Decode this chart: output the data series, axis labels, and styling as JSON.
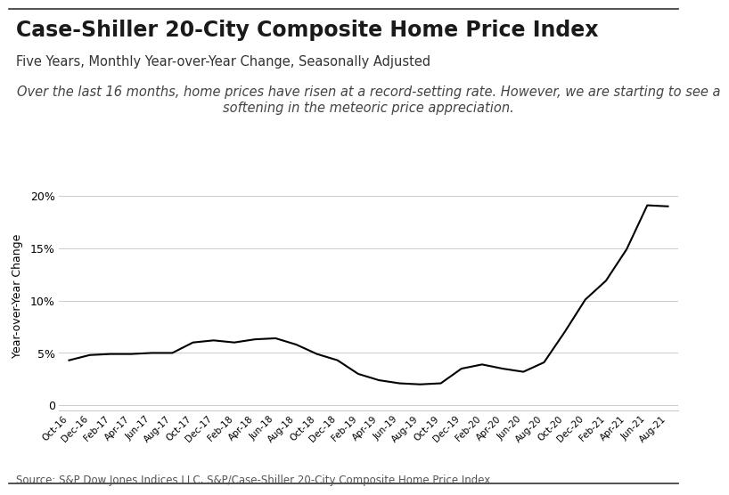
{
  "title": "Case-Shiller 20-City Composite Home Price Index",
  "subtitle": "Five Years, Monthly Year-over-Year Change, Seasonally Adjusted",
  "annotation": "Over the last 16 months, home prices have risen at a record-setting rate. However, we are starting to see a\nsoftening in the meteoric price appreciation.",
  "source": "Source: S&P Dow Jones Indices LLC, S&P/Case-Shiller 20-City Composite Home Price Index",
  "ylabel": "Year-over-Year Change",
  "background_color": "#ffffff",
  "line_color": "#000000",
  "grid_color": "#cccccc",
  "x_labels": [
    "Oct-16",
    "Dec-16",
    "Feb-17",
    "Apr-17",
    "Jun-17",
    "Aug-17",
    "Oct-17",
    "Dec-17",
    "Feb-18",
    "Apr-18",
    "Jun-18",
    "Aug-18",
    "Oct-18",
    "Dec-18",
    "Feb-19",
    "Apr-19",
    "Jun-19",
    "Aug-19",
    "Oct-19",
    "Dec-19",
    "Feb-20",
    "Apr-20",
    "Jun-20",
    "Aug-20",
    "Oct-20",
    "Dec-20",
    "Feb-21",
    "Apr-21",
    "Jun-21",
    "Aug-21"
  ],
  "values": [
    4.3,
    4.8,
    4.9,
    4.9,
    5.0,
    5.0,
    6.0,
    6.2,
    6.0,
    6.3,
    6.4,
    5.8,
    4.9,
    4.3,
    3.0,
    2.4,
    2.1,
    2.0,
    2.1,
    3.5,
    3.9,
    3.5,
    3.2,
    4.1,
    7.0,
    10.1,
    11.9,
    14.9,
    19.1,
    19.0
  ],
  "ylim": [
    -0.5,
    21.5
  ],
  "yticks": [
    0,
    5,
    10,
    15,
    20
  ],
  "ytick_labels": [
    "0",
    "5%",
    "10%",
    "15%",
    "20%"
  ],
  "title_fontsize": 17,
  "subtitle_fontsize": 10.5,
  "annotation_fontsize": 10.5,
  "source_fontsize": 8.5,
  "ylabel_fontsize": 9,
  "tick_fontsize": 9,
  "xtick_fontsize": 7.5
}
